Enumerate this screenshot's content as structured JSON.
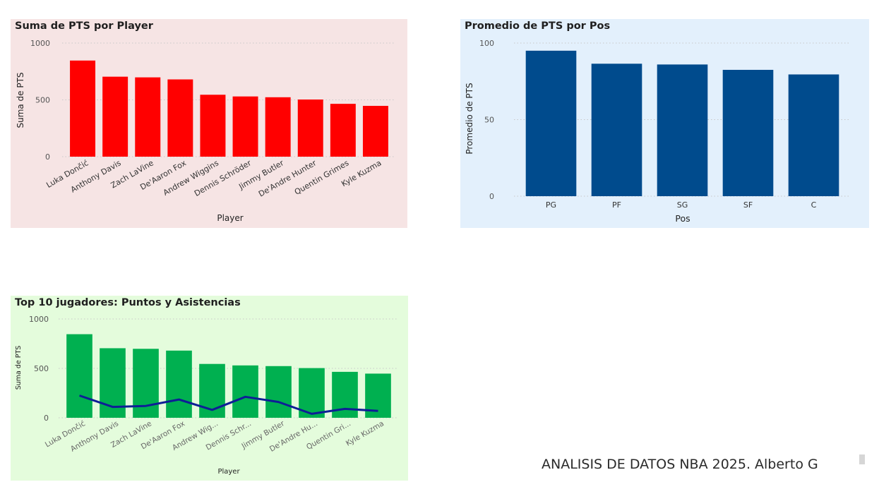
{
  "colors": {
    "panel1_bg": "#f6e4e4",
    "panel1_bar": "#ff0000",
    "panel2_bg": "#e3f0fc",
    "panel2_bar": "#004b8d",
    "panel3_bg": "#e4fcdc",
    "panel3_bar": "#00b050",
    "panel3_line": "#0e1e96",
    "grid": "#c8c8c8"
  },
  "footer": {
    "text": "ANALISIS DE DATOS NBA 2025.  Alberto G"
  },
  "chart_data": [
    {
      "type": "bar",
      "title": "Suma de PTS por Player",
      "xlabel": "Player",
      "ylabel": "Suma de PTS",
      "ylim": [
        0,
        1000
      ],
      "yticks": [
        "0",
        "500",
        "1000"
      ],
      "grid": true,
      "categories": [
        "Luka Dončić",
        "Anthony Davis",
        "Zach LaVine",
        "De'Aaron Fox",
        "Andrew Wiggins",
        "Dennis Schröder",
        "Jimmy Butler",
        "De'Andre Hunter",
        "Quentin Grimes",
        "Kyle Kuzma"
      ],
      "series": [
        {
          "values": [
            846,
            704,
            698,
            680,
            545,
            530,
            523,
            503,
            465,
            447
          ]
        }
      ]
    },
    {
      "type": "bar",
      "title": "Promedio de PTS por Pos",
      "xlabel": "Pos",
      "ylabel": "Promedio de PTS",
      "ylim": [
        0,
        100
      ],
      "yticks": [
        "0",
        "50",
        "100"
      ],
      "grid": true,
      "categories": [
        "PG",
        "PF",
        "SG",
        "SF",
        "C"
      ],
      "series": [
        {
          "values": [
            95,
            86.5,
            86,
            82.5,
            79.5
          ]
        }
      ]
    },
    {
      "type": "bar",
      "title": "Top 10 jugadores: Puntos y Asistencias",
      "xlabel": "Player",
      "ylabel": "Suma de PTS",
      "ylim": [
        0,
        1000
      ],
      "yticks": [
        "0",
        "500",
        "1000"
      ],
      "grid": true,
      "categories": [
        "Luka Dončić",
        "Anthony Davis",
        "Zach LaVine",
        "De'Aaron Fox",
        "Andrew Wig...",
        "Dennis Schr...",
        "Jimmy Butler",
        "De'Andre Hu...",
        "Quentin Gri...",
        "Kyle Kuzma"
      ],
      "series": [
        {
          "kind": "bar",
          "values": [
            846,
            704,
            698,
            680,
            545,
            530,
            523,
            503,
            465,
            447
          ]
        },
        {
          "kind": "line",
          "values": [
            225,
            110,
            120,
            185,
            80,
            212,
            160,
            40,
            90,
            70
          ]
        }
      ]
    }
  ]
}
